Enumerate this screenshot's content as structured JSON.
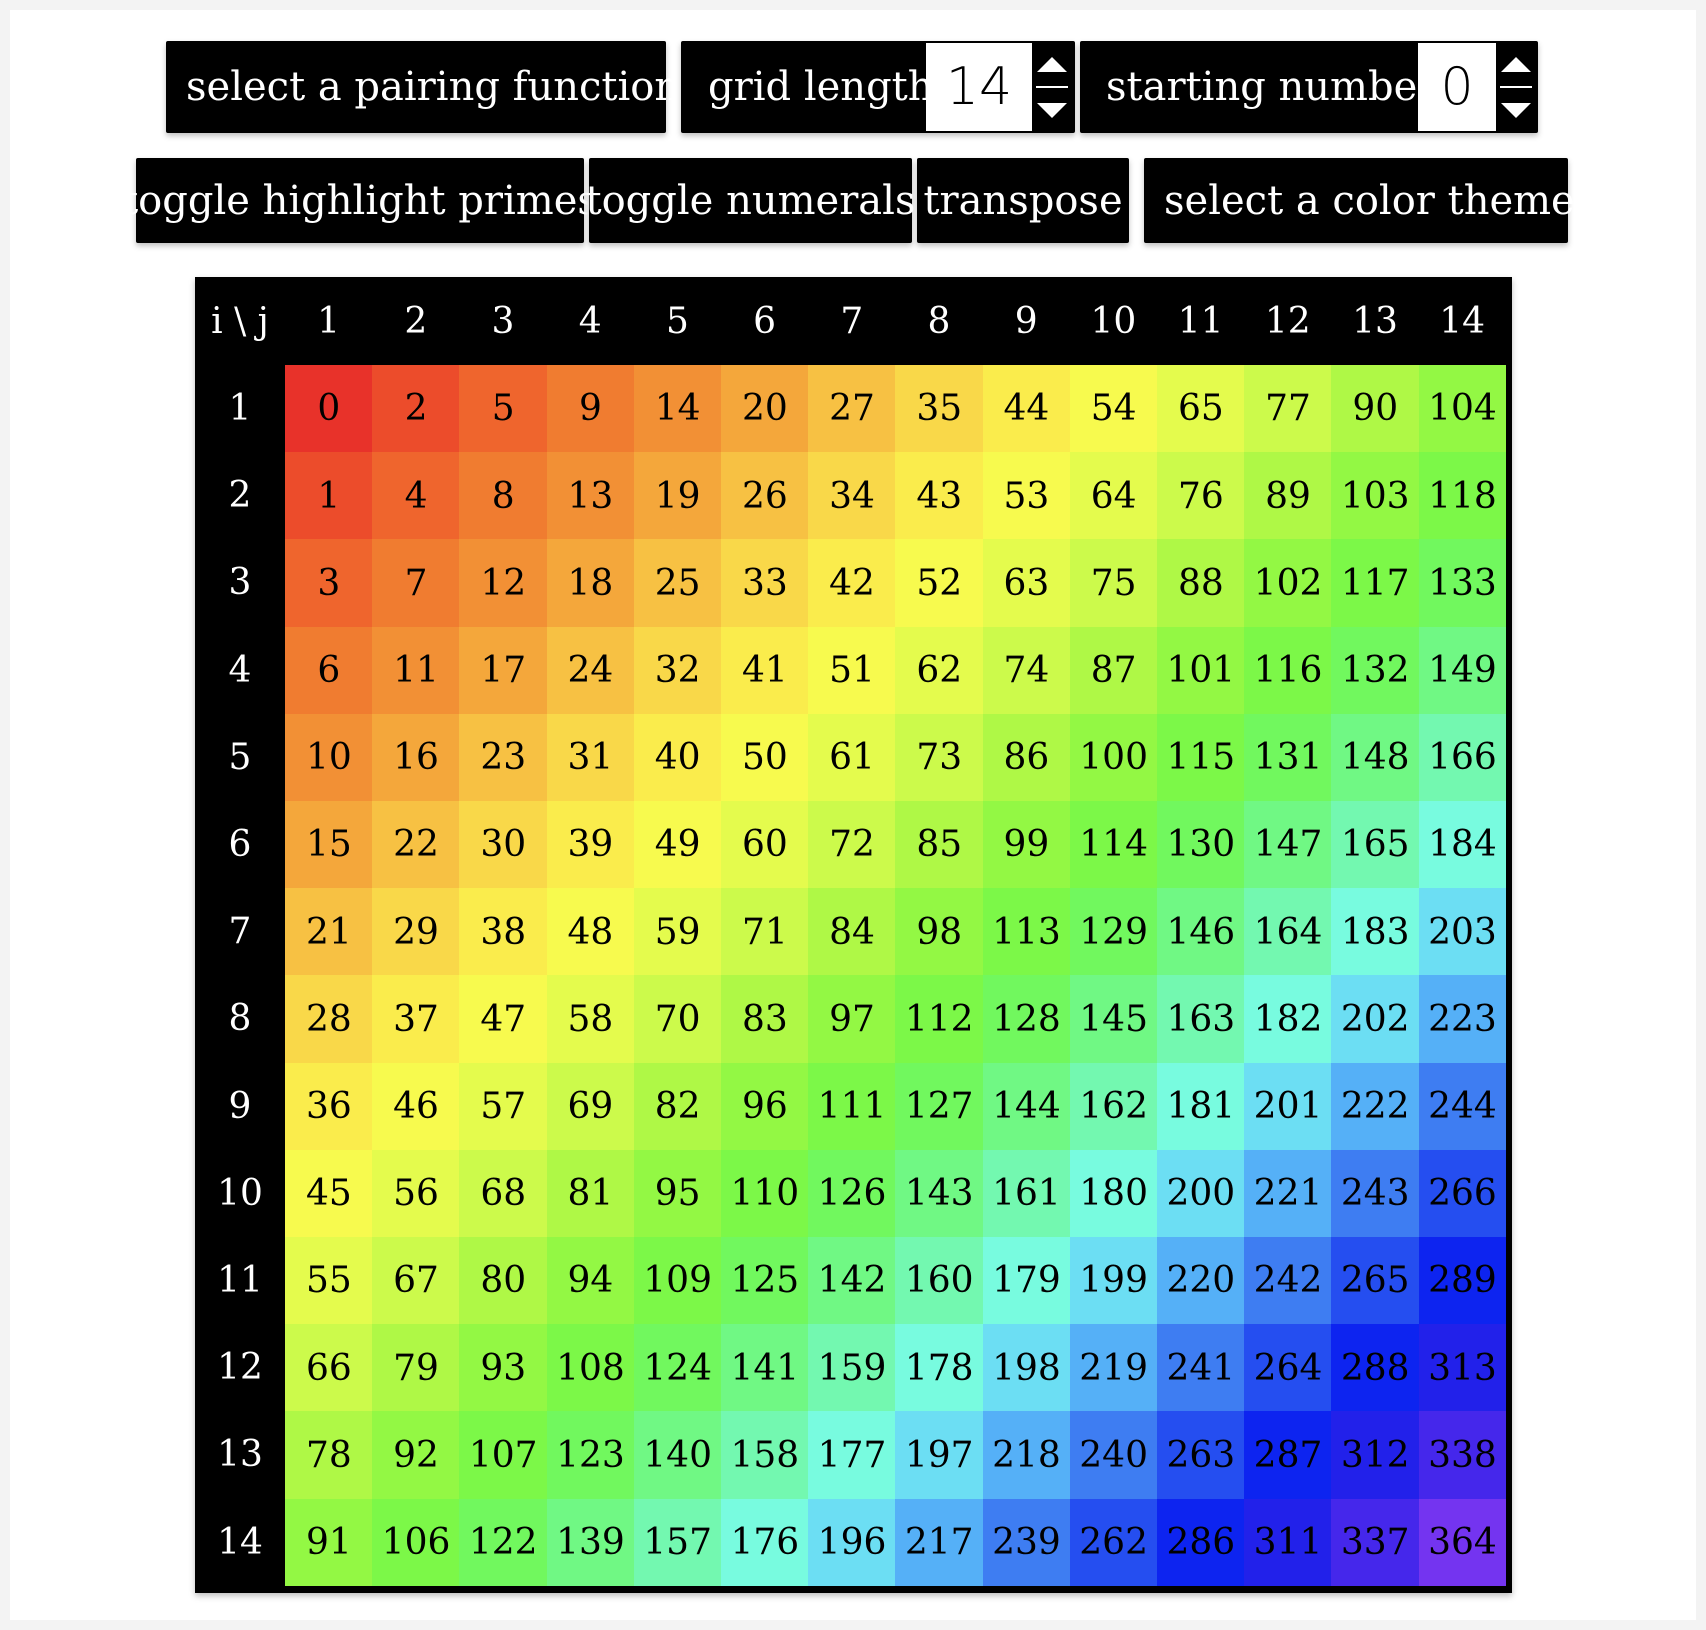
{
  "controls": {
    "pairing_function_label": "select a pairing function",
    "grid_length_label": "grid length",
    "grid_length_value": "14",
    "starting_number_label": "starting number",
    "starting_number_value": "0",
    "toggle_primes_label": "toggle highlight primes",
    "toggle_numerals_label": "toggle numerals",
    "transpose_label": "transpose",
    "color_theme_label": "select a color theme"
  },
  "table": {
    "corner_label": "i \\ j",
    "col_headers": [
      "1",
      "2",
      "3",
      "4",
      "5",
      "6",
      "7",
      "8",
      "9",
      "10",
      "11",
      "12",
      "13",
      "14"
    ],
    "row_headers": [
      "1",
      "2",
      "3",
      "4",
      "5",
      "6",
      "7",
      "8",
      "9",
      "10",
      "11",
      "12",
      "13",
      "14"
    ],
    "rows": [
      [
        "0",
        "2",
        "5",
        "9",
        "14",
        "20",
        "27",
        "35",
        "44",
        "54",
        "65",
        "77",
        "90",
        "104"
      ],
      [
        "1",
        "4",
        "8",
        "13",
        "19",
        "26",
        "34",
        "43",
        "53",
        "64",
        "76",
        "89",
        "103",
        "118"
      ],
      [
        "3",
        "7",
        "12",
        "18",
        "25",
        "33",
        "42",
        "52",
        "63",
        "75",
        "88",
        "102",
        "117",
        "133"
      ],
      [
        "6",
        "11",
        "17",
        "24",
        "32",
        "41",
        "51",
        "62",
        "74",
        "87",
        "101",
        "116",
        "132",
        "149"
      ],
      [
        "10",
        "16",
        "23",
        "31",
        "40",
        "50",
        "61",
        "73",
        "86",
        "100",
        "115",
        "131",
        "148",
        "166"
      ],
      [
        "15",
        "22",
        "30",
        "39",
        "49",
        "60",
        "72",
        "85",
        "99",
        "114",
        "130",
        "147",
        "165",
        "184"
      ],
      [
        "21",
        "29",
        "38",
        "48",
        "59",
        "71",
        "84",
        "98",
        "113",
        "129",
        "146",
        "164",
        "183",
        "203"
      ],
      [
        "28",
        "37",
        "47",
        "58",
        "70",
        "83",
        "97",
        "112",
        "128",
        "145",
        "163",
        "182",
        "202",
        "223"
      ],
      [
        "36",
        "46",
        "57",
        "69",
        "82",
        "96",
        "111",
        "127",
        "144",
        "162",
        "181",
        "201",
        "222",
        "244"
      ],
      [
        "45",
        "56",
        "68",
        "81",
        "95",
        "110",
        "126",
        "143",
        "161",
        "180",
        "200",
        "221",
        "243",
        "266"
      ],
      [
        "55",
        "67",
        "80",
        "94",
        "109",
        "125",
        "142",
        "160",
        "179",
        "199",
        "220",
        "242",
        "265",
        "289"
      ],
      [
        "66",
        "79",
        "93",
        "108",
        "124",
        "141",
        "159",
        "178",
        "198",
        "219",
        "241",
        "264",
        "288",
        "313"
      ],
      [
        "78",
        "92",
        "107",
        "123",
        "140",
        "158",
        "177",
        "197",
        "218",
        "240",
        "263",
        "287",
        "312",
        "338"
      ],
      [
        "91",
        "106",
        "122",
        "139",
        "157",
        "176",
        "196",
        "217",
        "239",
        "262",
        "286",
        "311",
        "337",
        "364"
      ]
    ],
    "palette": [
      "#e8322a",
      "#ee5a2c",
      "#f07d30",
      "#f39c38",
      "#f7c444",
      "#fbe74c",
      "#f7fc4e",
      "#d4fb4c",
      "#a8f845",
      "#7ef843",
      "#6ef865",
      "#72f8a8",
      "#7afcf0",
      "#58b6f8",
      "#3468f0",
      "#0c24f0",
      "#2c20e8",
      "#7434f0"
    ]
  }
}
